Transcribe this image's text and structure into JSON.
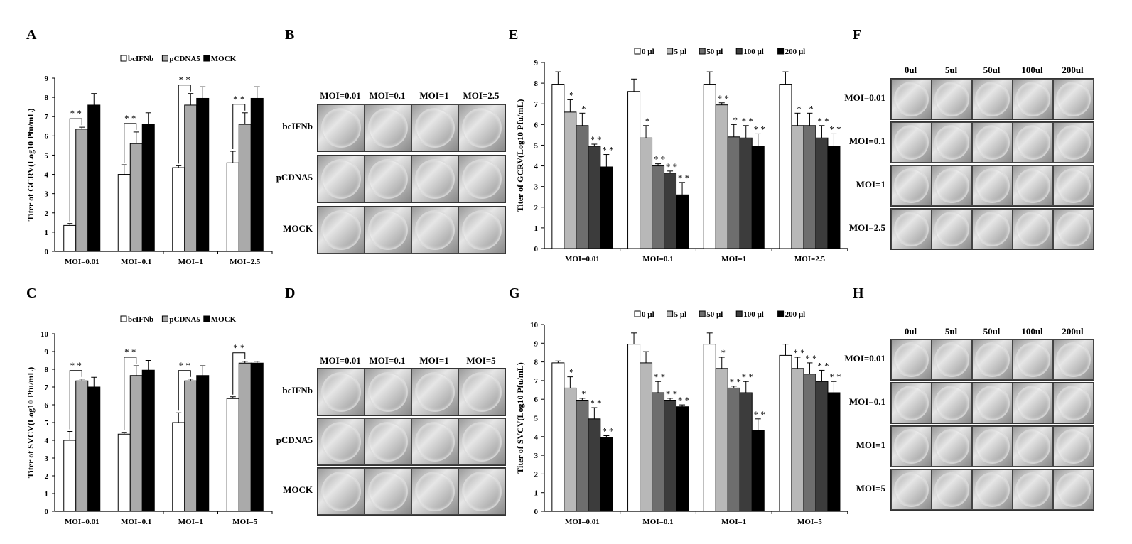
{
  "panel_letters": {
    "A": "A",
    "B": "B",
    "C": "C",
    "D": "D",
    "E": "E",
    "F": "F",
    "G": "G",
    "H": "H"
  },
  "colors": {
    "white_bar": "#ffffff",
    "grey_bar": "#aaaaaa",
    "black_bar": "#000000",
    "dose_5": "#b8b8b8",
    "dose_50": "#6e6e6e",
    "dose_100": "#3c3c3c",
    "dose_200": "#000000",
    "well_dense": "#8a2fbf",
    "well_light": "#d9c5e8"
  },
  "chart_data": [
    {
      "id": "A",
      "type": "bar",
      "ylabel": "Titer of GCRV(Log10 Pfu/mL)",
      "ylim": [
        0,
        9
      ],
      "yticks": [
        0,
        1,
        2,
        3,
        4,
        5,
        6,
        7,
        8,
        9
      ],
      "categories": [
        "MOI=0.01",
        "MOI=0.1",
        "MOI=1",
        "MOI=2.5"
      ],
      "series": [
        {
          "name": "bcIFNb",
          "color": "#ffffff",
          "values": [
            1.35,
            4.0,
            4.35,
            4.6
          ],
          "errors": [
            0.1,
            0.5,
            0.1,
            0.6
          ]
        },
        {
          "name": "pCDNA5",
          "color": "#aaaaaa",
          "values": [
            6.35,
            5.6,
            7.6,
            6.6
          ],
          "errors": [
            0.1,
            0.6,
            0.6,
            0.6
          ]
        },
        {
          "name": "MOCK",
          "color": "#000000",
          "values": [
            7.6,
            6.6,
            7.95,
            7.95
          ],
          "errors": [
            0.6,
            0.6,
            0.6,
            0.6
          ]
        }
      ],
      "significance": [
        "* *",
        "* *",
        "* *",
        "* *"
      ]
    },
    {
      "id": "C",
      "type": "bar",
      "ylabel": "Titer of SVCV(Log10 Pfu/mL)",
      "ylim": [
        0,
        10
      ],
      "yticks": [
        0,
        1,
        2,
        3,
        4,
        5,
        6,
        7,
        8,
        9,
        10
      ],
      "categories": [
        "MOI=0.01",
        "MOI=0.1",
        "MOI=1",
        "MOI=5"
      ],
      "series": [
        {
          "name": "bcIFNb",
          "color": "#ffffff",
          "values": [
            4.0,
            4.35,
            5.0,
            6.35
          ],
          "errors": [
            0.5,
            0.1,
            0.55,
            0.1
          ]
        },
        {
          "name": "pCDNA5",
          "color": "#aaaaaa",
          "values": [
            7.35,
            7.65,
            7.35,
            8.35
          ],
          "errors": [
            0.1,
            0.55,
            0.1,
            0.1
          ]
        },
        {
          "name": "MOCK",
          "color": "#000000",
          "values": [
            7.0,
            7.95,
            7.65,
            8.35
          ],
          "errors": [
            0.55,
            0.55,
            0.55,
            0.1
          ]
        }
      ],
      "significance": [
        "* *",
        "* *",
        "* *",
        "* *"
      ]
    },
    {
      "id": "E",
      "type": "bar",
      "ylabel": "Titer of GCRV(Log10 Pfu/mL)",
      "ylim": [
        0,
        9
      ],
      "yticks": [
        0,
        1,
        2,
        3,
        4,
        5,
        6,
        7,
        8,
        9
      ],
      "categories": [
        "MOI=0.01",
        "MOI=0.1",
        "MOI=1",
        "MOI=2.5"
      ],
      "series": [
        {
          "name": "0 µl",
          "color": "#ffffff",
          "values": [
            7.95,
            7.6,
            7.95,
            7.95
          ],
          "errors": [
            0.6,
            0.6,
            0.6,
            0.6
          ],
          "stars": [
            "",
            "",
            "",
            ""
          ]
        },
        {
          "name": "5 µl",
          "color": "#b8b8b8",
          "values": [
            6.6,
            5.35,
            6.95,
            5.95
          ],
          "errors": [
            0.6,
            0.6,
            0.1,
            0.6
          ],
          "stars": [
            "*",
            "*",
            "* *",
            "*"
          ]
        },
        {
          "name": "50 µl",
          "color": "#6e6e6e",
          "values": [
            5.95,
            4.0,
            5.4,
            5.95
          ],
          "errors": [
            0.6,
            0.1,
            0.6,
            0.6
          ],
          "stars": [
            "*",
            "* *",
            "*",
            "*"
          ]
        },
        {
          "name": "100 µl",
          "color": "#3c3c3c",
          "values": [
            4.95,
            3.65,
            5.35,
            5.35
          ],
          "errors": [
            0.1,
            0.1,
            0.6,
            0.6
          ],
          "stars": [
            "* *",
            "* *",
            "* *",
            "* *"
          ]
        },
        {
          "name": "200 µl",
          "color": "#000000",
          "values": [
            3.95,
            2.6,
            4.95,
            4.95
          ],
          "errors": [
            0.6,
            0.6,
            0.6,
            0.6
          ],
          "stars": [
            "* *",
            "* *",
            "* *",
            "* *"
          ]
        }
      ]
    },
    {
      "id": "G",
      "type": "bar",
      "ylabel": "Titer of SVCV(Log10 Pfu/mL)",
      "ylim": [
        0,
        10
      ],
      "yticks": [
        0,
        1,
        2,
        3,
        4,
        5,
        6,
        7,
        8,
        9,
        10
      ],
      "categories": [
        "MOI=0.01",
        "MOI=0.1",
        "MOI=1",
        "MOI=5"
      ],
      "series": [
        {
          "name": "0 µl",
          "color": "#ffffff",
          "values": [
            7.95,
            8.95,
            8.95,
            8.35
          ],
          "errors": [
            0.1,
            0.6,
            0.6,
            0.6
          ],
          "stars": [
            "",
            "",
            "",
            ""
          ]
        },
        {
          "name": "5 µl",
          "color": "#b8b8b8",
          "values": [
            6.6,
            7.95,
            7.65,
            7.65
          ],
          "errors": [
            0.6,
            0.6,
            0.6,
            0.6
          ],
          "stars": [
            "*",
            "",
            "*",
            "* *"
          ]
        },
        {
          "name": "50 µl",
          "color": "#6e6e6e",
          "values": [
            5.95,
            6.35,
            6.6,
            7.35
          ],
          "errors": [
            0.1,
            0.6,
            0.1,
            0.6
          ],
          "stars": [
            "*",
            "* *",
            "* *",
            "* *"
          ]
        },
        {
          "name": "100 µl",
          "color": "#3c3c3c",
          "values": [
            4.95,
            5.95,
            6.35,
            6.95
          ],
          "errors": [
            0.6,
            0.1,
            0.6,
            0.6
          ],
          "stars": [
            "* *",
            "* *",
            "* *",
            "* *"
          ]
        },
        {
          "name": "200 µl",
          "color": "#000000",
          "values": [
            3.95,
            5.6,
            4.35,
            6.35
          ],
          "errors": [
            0.1,
            0.1,
            0.6,
            0.6
          ],
          "stars": [
            "* *",
            "* *",
            "* *",
            "* *"
          ]
        }
      ]
    }
  ],
  "plates": {
    "B": {
      "columns": [
        "MOI=0.01",
        "MOI=0.1",
        "MOI=1",
        "MOI=2.5"
      ],
      "rows": [
        "bcIFNb",
        "pCDNA5",
        "MOCK"
      ],
      "intensity": [
        [
          0.95,
          0.95,
          0.95,
          0.95
        ],
        [
          0.9,
          0.65,
          0.4,
          0.35
        ],
        [
          0.9,
          0.7,
          0.15,
          0.15
        ]
      ]
    },
    "D": {
      "columns": [
        "MOI=0.01",
        "MOI=0.1",
        "MOI=1",
        "MOI=5"
      ],
      "rows": [
        "bcIFNb",
        "pCDNA5",
        "MOCK"
      ],
      "intensity": [
        [
          0.95,
          0.9,
          0.7,
          0.6
        ],
        [
          0.75,
          0.65,
          0.2,
          0.15
        ],
        [
          0.75,
          0.65,
          0.2,
          0.15
        ]
      ]
    },
    "F": {
      "columns": [
        "0ul",
        "5ul",
        "50ul",
        "100ul",
        "200ul"
      ],
      "rows": [
        "MOI=0.01",
        "MOI=0.1",
        "MOI=1",
        "MOI=2.5"
      ],
      "intensity": [
        [
          0.8,
          0.9,
          0.9,
          0.9,
          0.9
        ],
        [
          0.45,
          0.85,
          0.9,
          0.9,
          0.9
        ],
        [
          0.2,
          0.75,
          0.85,
          0.85,
          0.9
        ],
        [
          0.1,
          0.6,
          0.65,
          0.75,
          0.85
        ]
      ]
    },
    "H": {
      "columns": [
        "0ul",
        "5ul",
        "50ul",
        "100ul",
        "200ul"
      ],
      "rows": [
        "MOI=0.01",
        "MOI=0.1",
        "MOI=1",
        "MOI=5"
      ],
      "intensity": [
        [
          0.7,
          0.6,
          0.6,
          0.7,
          0.75
        ],
        [
          0.6,
          0.5,
          0.55,
          0.65,
          0.7
        ],
        [
          0.5,
          0.5,
          0.55,
          0.6,
          0.7
        ],
        [
          0.25,
          0.4,
          0.45,
          0.55,
          0.6
        ]
      ]
    }
  }
}
